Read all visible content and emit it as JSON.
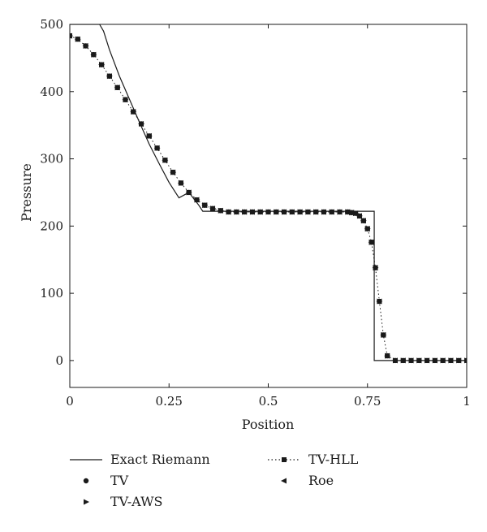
{
  "chart_data": {
    "type": "line",
    "title": "",
    "xlabel": "Position",
    "ylabel": "Pressure",
    "xlim": [
      0,
      1
    ],
    "ylim": [
      -40,
      500
    ],
    "x_ticks": [
      0,
      0.25,
      0.5,
      0.75,
      1
    ],
    "x_tick_labels": [
      "0",
      "0.25",
      "0.5",
      "0.75",
      "1"
    ],
    "y_ticks": [
      0,
      100,
      200,
      300,
      400,
      500
    ],
    "y_tick_labels": [
      "0",
      "100",
      "200",
      "300",
      "400",
      "500"
    ],
    "grid": false,
    "legend_position": "bottom",
    "series": [
      {
        "name": "Exact Riemann",
        "marker": "none",
        "x": [
          0,
          0.075,
          0.085,
          0.1,
          0.125,
          0.15,
          0.175,
          0.2,
          0.225,
          0.25,
          0.275,
          0.3,
          0.325,
          0.335,
          0.5,
          0.7,
          0.767,
          0.767,
          0.8,
          1
        ],
        "y": [
          500,
          500,
          490,
          462,
          423,
          389,
          355,
          322,
          293,
          265,
          242,
          250,
          231,
          222,
          222,
          222,
          222,
          0,
          0,
          0
        ]
      },
      {
        "name": "TV",
        "marker": "circle",
        "x": [
          0,
          0.02,
          0.04,
          0.06,
          0.08,
          0.1,
          0.12,
          0.14,
          0.16,
          0.18,
          0.2,
          0.22,
          0.24,
          0.26,
          0.28,
          0.3,
          0.32,
          0.34,
          0.36,
          0.38,
          0.4,
          0.42,
          0.44,
          0.46,
          0.48,
          0.5,
          0.52,
          0.54,
          0.56,
          0.58,
          0.6,
          0.62,
          0.64,
          0.66,
          0.68,
          0.7,
          0.71,
          0.72,
          0.73,
          0.74,
          0.75,
          0.76,
          0.77,
          0.78,
          0.79,
          0.8,
          0.82,
          0.84,
          0.86,
          0.88,
          0.9,
          0.92,
          0.94,
          0.96,
          0.98,
          1
        ],
        "y": [
          483,
          478,
          468,
          455,
          440,
          423,
          406,
          388,
          370,
          352,
          334,
          316,
          298,
          280,
          264,
          250,
          239,
          231,
          226,
          223,
          221,
          221,
          221,
          221,
          221,
          221,
          221,
          221,
          221,
          221,
          221,
          221,
          221,
          221,
          221,
          221,
          220,
          219,
          215,
          208,
          196,
          176,
          138,
          88,
          38,
          7,
          0,
          0,
          0,
          0,
          0,
          0,
          0,
          0,
          0,
          0
        ]
      },
      {
        "name": "TV-HLL",
        "marker": "square",
        "line": "dotted",
        "x": [
          0,
          0.02,
          0.04,
          0.06,
          0.08,
          0.1,
          0.12,
          0.14,
          0.16,
          0.18,
          0.2,
          0.22,
          0.24,
          0.26,
          0.28,
          0.3,
          0.32,
          0.34,
          0.36,
          0.38,
          0.4,
          0.42,
          0.44,
          0.46,
          0.48,
          0.5,
          0.52,
          0.54,
          0.56,
          0.58,
          0.6,
          0.62,
          0.64,
          0.66,
          0.68,
          0.7,
          0.71,
          0.72,
          0.73,
          0.74,
          0.75,
          0.76,
          0.77,
          0.78,
          0.79,
          0.8,
          0.82,
          0.84,
          0.86,
          0.88,
          0.9,
          0.92,
          0.94,
          0.96,
          0.98,
          1
        ],
        "y": [
          483,
          478,
          468,
          455,
          440,
          423,
          406,
          388,
          370,
          352,
          334,
          316,
          298,
          280,
          264,
          250,
          239,
          231,
          226,
          223,
          221,
          221,
          221,
          221,
          221,
          221,
          221,
          221,
          221,
          221,
          221,
          221,
          221,
          221,
          221,
          221,
          220,
          219,
          215,
          208,
          196,
          176,
          138,
          88,
          38,
          7,
          0,
          0,
          0,
          0,
          0,
          0,
          0,
          0,
          0,
          0
        ]
      },
      {
        "name": "TV-AWS",
        "marker": "triangle-right",
        "x": [
          0,
          0.02,
          0.04,
          0.06,
          0.08,
          0.1,
          0.12,
          0.14,
          0.16,
          0.18,
          0.2,
          0.22,
          0.24,
          0.26,
          0.28,
          0.3,
          0.32,
          0.34,
          0.36,
          0.38,
          0.4,
          0.42,
          0.44,
          0.46,
          0.48,
          0.5,
          0.52,
          0.54,
          0.56,
          0.58,
          0.6,
          0.62,
          0.64,
          0.66,
          0.68,
          0.7,
          0.71,
          0.72,
          0.73,
          0.74,
          0.75,
          0.76,
          0.77,
          0.78,
          0.79,
          0.8,
          0.82,
          0.84,
          0.86,
          0.88,
          0.9,
          0.92,
          0.94,
          0.96,
          0.98,
          1
        ],
        "y": [
          483,
          478,
          468,
          455,
          440,
          423,
          406,
          388,
          370,
          352,
          334,
          316,
          298,
          280,
          264,
          250,
          239,
          231,
          226,
          223,
          221,
          221,
          221,
          221,
          221,
          221,
          221,
          221,
          221,
          221,
          221,
          221,
          221,
          221,
          221,
          221,
          220,
          219,
          215,
          208,
          196,
          176,
          138,
          88,
          38,
          7,
          0,
          0,
          0,
          0,
          0,
          0,
          0,
          0,
          0,
          0
        ]
      },
      {
        "name": "Roe",
        "marker": "triangle-left",
        "x": [
          0,
          0.02,
          0.04,
          0.06,
          0.08,
          0.1,
          0.12,
          0.14,
          0.16,
          0.18,
          0.2,
          0.22,
          0.24,
          0.26,
          0.28,
          0.3,
          0.32,
          0.34,
          0.36,
          0.38,
          0.4,
          0.42,
          0.44,
          0.46,
          0.48,
          0.5,
          0.52,
          0.54,
          0.56,
          0.58,
          0.6,
          0.62,
          0.64,
          0.66,
          0.68,
          0.7,
          0.71,
          0.72,
          0.73,
          0.74,
          0.75,
          0.76,
          0.77,
          0.78,
          0.79,
          0.8,
          0.82,
          0.84,
          0.86,
          0.88,
          0.9,
          0.92,
          0.94,
          0.96,
          0.98,
          1
        ],
        "y": [
          483,
          478,
          468,
          455,
          440,
          423,
          406,
          388,
          370,
          352,
          334,
          316,
          298,
          280,
          264,
          250,
          239,
          231,
          226,
          223,
          221,
          221,
          221,
          221,
          221,
          221,
          221,
          221,
          221,
          221,
          221,
          221,
          221,
          221,
          221,
          221,
          220,
          219,
          215,
          208,
          196,
          176,
          138,
          88,
          38,
          7,
          0,
          0,
          0,
          0,
          0,
          0,
          0,
          0,
          0,
          0
        ]
      }
    ]
  },
  "colors": {
    "marks": "#1a1a1a",
    "axis": "#1a1a1a",
    "background": "#ffffff"
  }
}
